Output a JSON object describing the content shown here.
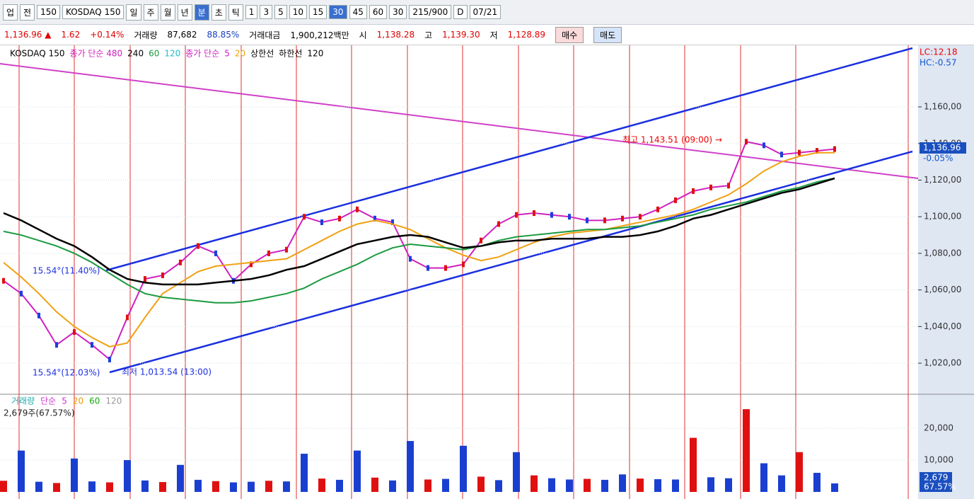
{
  "toolbar": {
    "items": [
      "업",
      "전",
      "150",
      "KOSDAQ 150",
      "일",
      "주",
      "월",
      "년",
      "분",
      "초",
      "틱",
      "1",
      "3",
      "5",
      "10",
      "15",
      "30",
      "45",
      "60",
      "30",
      "215/900",
      "D",
      "07/21"
    ]
  },
  "quote": {
    "price": "1,136.96 ▲",
    "change": "1.62",
    "change_pct": "+0.14%",
    "volume_label": "거래량",
    "volume": "87,682",
    "volume_ratio": "88.85%",
    "amount_label": "거래대금",
    "amount": "1,900,212백만",
    "open_label": "시",
    "open": "1,138.28",
    "high_label": "고",
    "high": "1,139.30",
    "low_label": "저",
    "low": "1,128.89",
    "buy": "매수",
    "sell": "매도"
  },
  "chart_data": [
    {
      "type": "line",
      "legend": [
        "KOSDAQ 150",
        "종가 단순 480",
        "240",
        "120",
        "종가 단순",
        "상한선",
        "하한선"
      ],
      "series": [
        {
          "name": "5",
          "color": "#d020c0",
          "values": [
            1065,
            1058,
            1046,
            1030,
            1037,
            1030,
            1022,
            1045,
            1066,
            1068,
            1075,
            1084,
            1080,
            1065,
            1074,
            1080,
            1082,
            1100,
            1097,
            1099,
            1104,
            1099,
            1097,
            1077,
            1072,
            1072,
            1074,
            1087,
            1096,
            1101,
            1102,
            1101,
            1100,
            1098,
            1098,
            1099,
            1100,
            1104,
            1109,
            1114,
            1116,
            1117,
            1141,
            1139,
            1134,
            1135,
            1136,
            1136.96
          ]
        },
        {
          "name": "20",
          "color": "#f0a010",
          "values": [
            1075,
            1067,
            1058,
            1048,
            1040,
            1034,
            1029,
            1031,
            1045,
            1058,
            1064,
            1070,
            1073,
            1074,
            1075,
            1076,
            1077,
            1082,
            1087,
            1092,
            1096,
            1098,
            1096,
            1093,
            1088,
            1083,
            1079,
            1076,
            1078,
            1082,
            1086,
            1089,
            1091,
            1092,
            1093,
            1095,
            1097,
            1099,
            1101,
            1104,
            1108,
            1112,
            1118,
            1125,
            1130,
            1133,
            1135,
            1135
          ]
        },
        {
          "name": "60",
          "color": "#1a9a40",
          "values": [
            1092,
            1090,
            1087,
            1084,
            1080,
            1075,
            1069,
            1063,
            1058,
            1056,
            1055,
            1054,
            1053,
            1053,
            1054,
            1056,
            1058,
            1061,
            1066,
            1070,
            1074,
            1079,
            1083,
            1085,
            1084,
            1083,
            1082,
            1084,
            1087,
            1089,
            1090,
            1091,
            1092,
            1093,
            1093,
            1094,
            1095,
            1097,
            1099,
            1101,
            1104,
            1106,
            1108,
            1111,
            1114,
            1116,
            1119,
            1121
          ]
        },
        {
          "name": "120",
          "color": "#000000",
          "values": [
            1102,
            1098,
            1093,
            1088,
            1084,
            1078,
            1071,
            1066,
            1064,
            1063,
            1063,
            1063,
            1064,
            1065,
            1066,
            1068,
            1071,
            1073,
            1077,
            1081,
            1085,
            1087,
            1089,
            1090,
            1089,
            1086,
            1083,
            1084,
            1086,
            1087,
            1087,
            1088,
            1088,
            1088,
            1089,
            1089,
            1090,
            1092,
            1095,
            1099,
            1101,
            1104,
            1107,
            1110,
            1113,
            1115,
            1118,
            1121
          ]
        }
      ],
      "ylim": [
        1003.4,
        1192.5
      ],
      "yticks": [
        {
          "value": 1020,
          "label": "1,020,00"
        },
        {
          "value": 1040,
          "label": "1,040,00"
        },
        {
          "value": 1060,
          "label": "1,060,00"
        },
        {
          "value": 1080,
          "label": "1,080,00"
        },
        {
          "value": 1100,
          "label": "1,100,00"
        },
        {
          "value": 1120,
          "label": "1,120,00"
        },
        {
          "value": 1140,
          "label": "1,140,00"
        },
        {
          "value": 1160,
          "label": "1,160,00"
        }
      ],
      "annotations": {
        "lc": "LC:12.18",
        "hc": "HC:-0.57",
        "high": "최고 1,143.51 (09:00) →",
        "angle_upper": "15.54°(11.40%)",
        "angle_lower": "15.54°(12.03%)",
        "low": "최저 1,013.54 (13:00)",
        "last": "1,136.96",
        "last_pct": "-0.05%"
      }
    },
    {
      "type": "bar",
      "legend": [
        "거래량",
        "단순",
        "5",
        "20",
        "60",
        "120"
      ],
      "info": "2,679주(67.57%)",
      "values": [
        3500,
        13000,
        3200,
        2800,
        10500,
        3300,
        3000,
        10000,
        3600,
        3100,
        8500,
        3800,
        3400,
        3000,
        3200,
        3500,
        3300,
        12000,
        4200,
        3800,
        13000,
        4500,
        3600,
        16000,
        3900,
        4100,
        14500,
        4800,
        3700,
        12500,
        5200,
        4300,
        3900,
        4100,
        3800,
        5500,
        4200,
        4000,
        3900,
        17000,
        4600,
        4300,
        26000,
        9000,
        5200,
        12500,
        6000,
        2679
      ],
      "ylim": [
        0,
        29800
      ],
      "yticks": [
        {
          "value": 10000,
          "label": "10,000"
        },
        {
          "value": 20000,
          "label": "20,000"
        }
      ],
      "last": "2,679",
      "last_pct": "67.57%"
    }
  ]
}
